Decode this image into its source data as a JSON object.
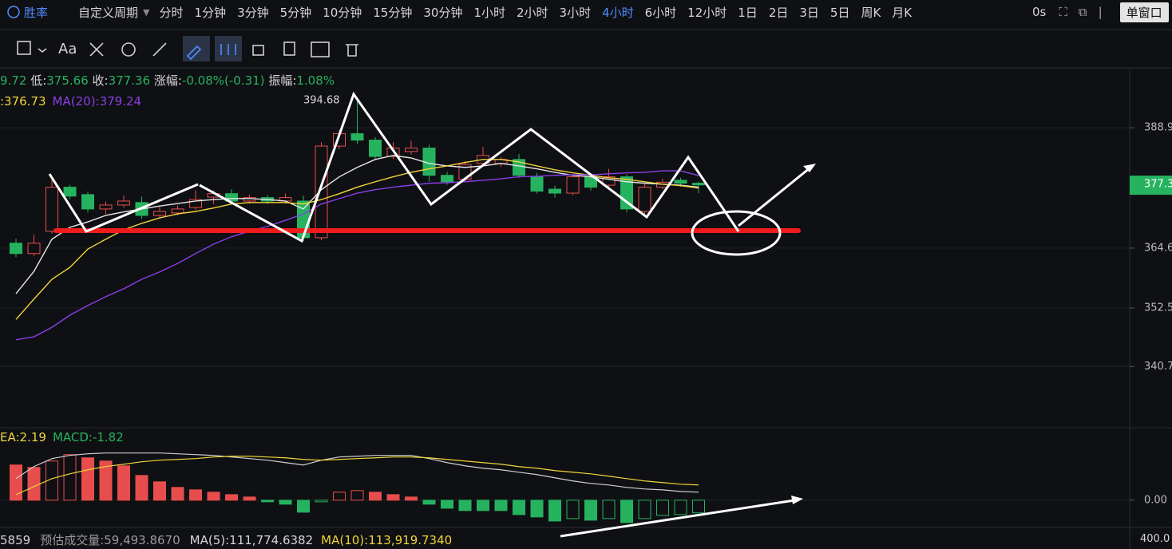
{
  "header": {
    "logo": "胜率",
    "custom_period": "自定义周期",
    "periods": [
      "分时",
      "1分钟",
      "3分钟",
      "5分钟",
      "10分钟",
      "15分钟",
      "30分钟",
      "1小时",
      "2小时",
      "3小时",
      "4小时",
      "6小时",
      "12小时",
      "1日",
      "2日",
      "3日",
      "5日",
      "周K",
      "月K"
    ],
    "selected_period": "4小时",
    "timer": "0s",
    "window_button": "单窗口"
  },
  "toolbar": {
    "text_tool": "Aa"
  },
  "info": {
    "high_tail": "9.72",
    "low_label": "低:",
    "low": "375.66",
    "close_label": "收:",
    "close": "377.36",
    "change_label": "涨幅:",
    "change": "-0.08%(-0.31)",
    "amplitude_label": "振幅:",
    "amplitude": "1.08%",
    "ma10": ":376.73",
    "ma20": "MA(20):379.24"
  },
  "macd_info": {
    "dea": "EA:2.19",
    "macd": "MACD:-1.82"
  },
  "volume": {
    "current": "5859",
    "estimate": "预估成交量:59,493.8670",
    "ma5": "MA(5):111,774.6382",
    "ma10": "MA(10):113,919.7340",
    "axis_label": "400.0"
  },
  "chart_data": [
    {
      "type": "candlestick",
      "up_color": "#e84d4d",
      "down_color": "#26b35f",
      "open": [
        365.6,
        363.5,
        368.0,
        376.9,
        375.4,
        372.5,
        373.3,
        373.8,
        371.2,
        371.7,
        372.8,
        374.9,
        375.6,
        374.1,
        374.8,
        374.1,
        374.1,
        366.7,
        385.2,
        387.7,
        386.4,
        383.1,
        384.1,
        384.8,
        379.3,
        378.5,
        381.7,
        381.7,
        382.5,
        379.0,
        376.5,
        375.7,
        379.0,
        377.3,
        379.0,
        372.0,
        376.9,
        378.3,
        377.7
      ],
      "high": [
        366.5,
        367.3,
        378.5,
        377.4,
        376.0,
        374.0,
        375.2,
        375.0,
        373.0,
        373.2,
        376.3,
        376.2,
        376.5,
        375.4,
        375.3,
        375.6,
        375.2,
        386.0,
        388.4,
        394.68,
        387.0,
        386.0,
        386.3,
        385.5,
        380.0,
        382.2,
        385.0,
        383.0,
        383.6,
        379.8,
        377.2,
        379.5,
        379.6,
        380.6,
        379.5,
        377.5,
        378.6,
        378.8,
        378.0
      ],
      "low": [
        362.8,
        363.0,
        367.5,
        374.5,
        371.8,
        371.5,
        372.8,
        370.5,
        370.8,
        371.2,
        372.3,
        373.5,
        373.6,
        373.6,
        373.5,
        373.6,
        366.0,
        366.2,
        384.6,
        385.6,
        382.5,
        382.6,
        383.5,
        378.0,
        377.4,
        378.0,
        381.2,
        381.0,
        378.8,
        375.6,
        374.8,
        375.3,
        376.2,
        376.8,
        371.8,
        371.5,
        376.5,
        377.0,
        375.66
      ],
      "close": [
        363.5,
        365.6,
        376.9,
        375.1,
        372.5,
        373.3,
        374.1,
        371.2,
        372.0,
        372.5,
        374.4,
        375.6,
        374.1,
        374.8,
        374.1,
        374.8,
        366.7,
        385.2,
        387.7,
        386.4,
        383.1,
        384.8,
        384.8,
        379.3,
        378.0,
        381.5,
        383.3,
        382.5,
        379.3,
        376.1,
        375.7,
        379.0,
        376.9,
        379.0,
        372.5,
        376.9,
        377.9,
        377.7,
        377.36
      ],
      "series": [
        {
          "color": "#e6e6e6",
          "values": [
            355.4,
            359.9,
            366.4,
            368.8,
            369.9,
            371.2,
            371.9,
            372.5,
            373.1,
            373.6,
            374.1,
            374.4,
            374.6,
            374.6,
            374.4,
            374.1,
            372.5,
            376.4,
            379.0,
            380.9,
            382.5,
            383.3,
            382.8,
            381.7,
            381.2,
            380.9,
            381.2,
            381.7,
            381.2,
            380.6,
            379.9,
            379.3,
            379.0,
            378.5,
            378.0,
            377.7,
            377.5,
            377.3,
            376.9
          ]
        },
        {
          "color": "#f2d43a",
          "values": [
            350.2,
            354.3,
            358.3,
            360.7,
            364.4,
            366.4,
            368.3,
            369.6,
            370.7,
            371.5,
            372.0,
            372.7,
            373.5,
            373.8,
            373.8,
            373.8,
            373.5,
            374.4,
            375.6,
            376.9,
            378.0,
            379.0,
            379.9,
            380.6,
            381.2,
            381.9,
            382.5,
            382.5,
            382.0,
            381.2,
            380.4,
            379.8,
            379.3,
            378.8,
            378.5,
            378.0,
            377.5,
            377.2,
            376.73
          ]
        },
        {
          "color": "#8a3ee8",
          "values": [
            346.1,
            346.7,
            348.6,
            351.05,
            353.0,
            354.8,
            356.4,
            358.3,
            359.8,
            361.5,
            363.5,
            365.4,
            366.9,
            368.0,
            369.0,
            370.2,
            371.5,
            373.5,
            374.6,
            375.7,
            376.4,
            376.9,
            377.3,
            377.7,
            377.8,
            378.0,
            378.3,
            378.6,
            379.0,
            379.1,
            379.3,
            379.4,
            379.4,
            379.6,
            379.8,
            379.9,
            380.2,
            380.2,
            379.24
          ]
        }
      ],
      "max_label": {
        "value": 394.68,
        "label": "394.68"
      },
      "last_price": 377.3,
      "ylim": [
        328.5,
        401.0
      ],
      "yticks": [
        340.7,
        352.5,
        364.6,
        388.9
      ],
      "grid": true
    },
    {
      "type": "macd",
      "up_color": "#e84d4d",
      "down_color": "#26b35f",
      "values": [
        5.06,
        4.71,
        5.63,
        6.55,
        6.09,
        5.63,
        4.94,
        3.56,
        2.64,
        1.84,
        1.49,
        1.15,
        0.8,
        0.46,
        -0.23,
        -0.57,
        -1.72,
        -0.23,
        1.15,
        1.38,
        1.15,
        0.8,
        0.46,
        -0.57,
        -1.15,
        -1.49,
        -1.49,
        -1.49,
        -2.07,
        -2.41,
        -2.99,
        -2.64,
        -2.87,
        -2.64,
        -3.22,
        -2.64,
        -2.18,
        -2.07,
        -1.82
      ],
      "series": [
        {
          "color": "#d0d0d0",
          "values": [
            3.1,
            4.83,
            5.98,
            6.44,
            6.67,
            6.78,
            6.78,
            6.78,
            6.78,
            6.67,
            6.55,
            6.44,
            6.21,
            5.98,
            5.75,
            5.4,
            5.06,
            5.75,
            6.21,
            6.32,
            6.44,
            6.44,
            6.44,
            5.98,
            5.4,
            4.94,
            4.6,
            4.37,
            4.02,
            3.68,
            3.22,
            2.76,
            2.41,
            2.18,
            1.84,
            1.61,
            1.49,
            1.26,
            1.15
          ]
        },
        {
          "color": "#f2d43a",
          "values": [
            0.8,
            1.95,
            3.1,
            3.79,
            4.37,
            4.83,
            5.17,
            5.52,
            5.75,
            5.86,
            5.98,
            6.21,
            6.32,
            6.32,
            6.21,
            6.09,
            5.86,
            5.75,
            5.86,
            5.98,
            6.09,
            6.21,
            6.21,
            6.09,
            5.86,
            5.63,
            5.4,
            5.17,
            4.83,
            4.6,
            4.25,
            4.02,
            3.79,
            3.45,
            3.1,
            2.76,
            2.53,
            2.3,
            2.19
          ]
        }
      ],
      "ylim": [
        -3.8,
        10.3
      ],
      "yticks": [
        {
          "value": 0,
          "label": "0.00"
        }
      ],
      "grid": true
    }
  ]
}
